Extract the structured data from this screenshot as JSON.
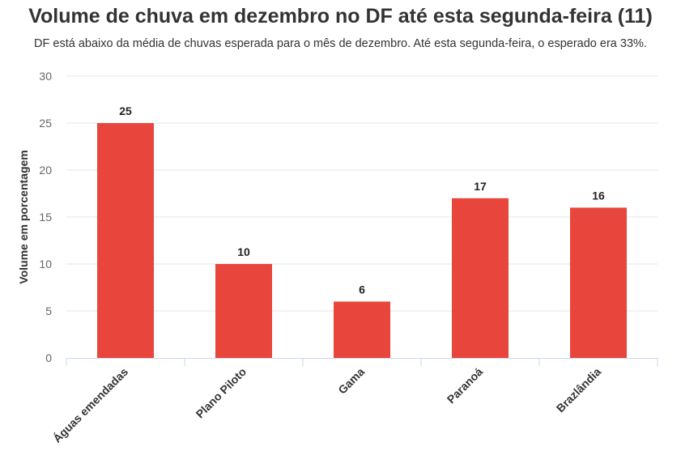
{
  "chart_data": {
    "type": "bar",
    "title": "Volume de chuva em dezembro no DF até esta segunda-feira (11)",
    "subtitle": "DF está abaixo da média de chuvas esperada para o mês de dezembro. Até esta segunda-feira, o esperado era 33%.",
    "categories": [
      "Águas emendadas",
      "Plano Piloto",
      "Gama",
      "Paranoá",
      "Brazlândia"
    ],
    "values": [
      25,
      10,
      6,
      17,
      16
    ],
    "xlabel": "",
    "ylabel": "Volume em porcentagem",
    "ylim": [
      0,
      30
    ],
    "yticks": [
      0,
      5,
      10,
      15,
      20,
      25,
      30
    ],
    "grid": true,
    "bar_color": "#e8463c"
  }
}
